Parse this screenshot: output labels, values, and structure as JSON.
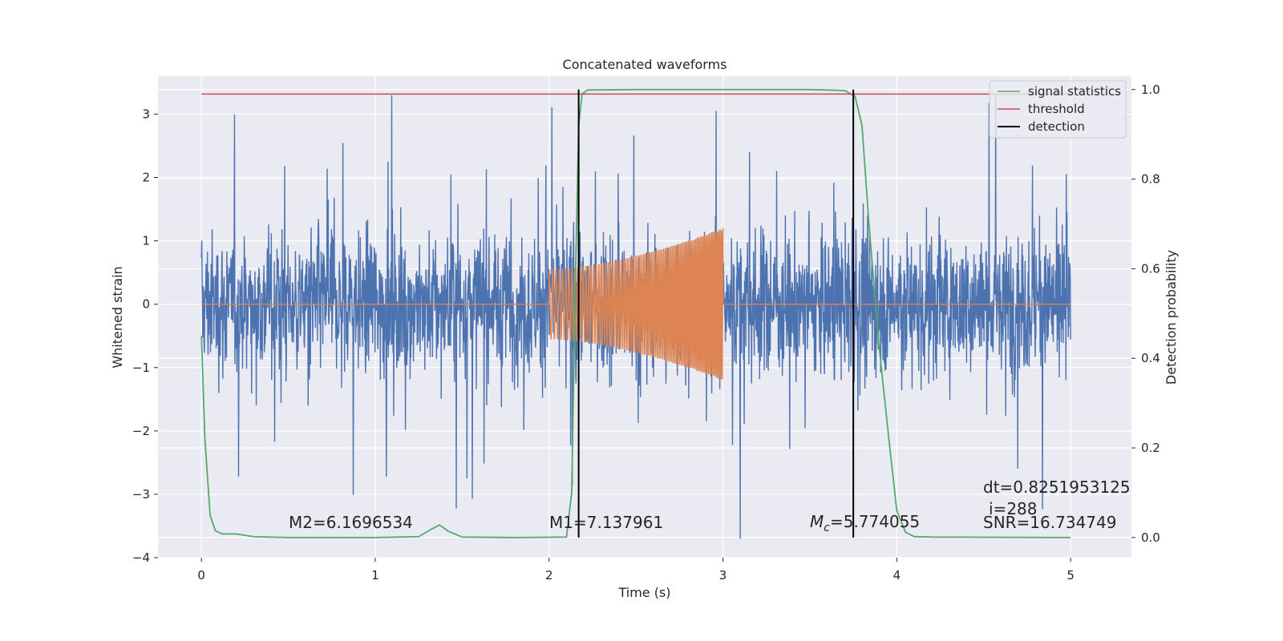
{
  "chart_data": {
    "type": "line",
    "title": "Concatenated waveforms",
    "xlabel": "Time (s)",
    "ylabel": "Whitened strain",
    "y2label": "Detection probability",
    "xlim": [
      -0.25,
      5.35
    ],
    "ylim": [
      -4.0,
      3.6
    ],
    "y2lim": [
      -0.045,
      1.03
    ],
    "xticks": [
      "0",
      "1",
      "2",
      "3",
      "4",
      "5"
    ],
    "yticks": [
      "3",
      "2",
      "1",
      "0",
      "−1",
      "−2",
      "−3",
      "−4"
    ],
    "y2ticks": [
      "1.0",
      "0.8",
      "0.6",
      "0.4",
      "0.2",
      "0.0"
    ],
    "grid": true,
    "legend_position": "top-right",
    "colors": {
      "background": "#eaeaf2",
      "noise": "#4c72b0",
      "template": "#dd8452",
      "signal_statistics": "#55a868",
      "threshold": "#c44e52",
      "detection": "#000000"
    },
    "series": [
      {
        "name": "signal statistics",
        "axis": "right",
        "x": [
          0.0,
          0.02,
          0.05,
          0.08,
          0.12,
          0.2,
          0.3,
          0.5,
          1.0,
          1.25,
          1.32,
          1.37,
          1.42,
          1.5,
          1.8,
          2.1,
          2.13,
          2.15,
          2.17,
          2.19,
          2.22,
          2.5,
          3.0,
          3.5,
          3.7,
          3.76,
          3.8,
          3.84,
          3.9,
          3.96,
          4.0,
          4.05,
          4.1,
          4.2,
          5.0
        ],
        "y": [
          0.45,
          0.22,
          0.05,
          0.015,
          0.008,
          0.008,
          0.002,
          0.0,
          0.0,
          0.002,
          0.018,
          0.028,
          0.014,
          0.001,
          0.0,
          0.001,
          0.1,
          0.55,
          0.92,
          0.99,
          0.999,
          1.0,
          1.0,
          1.0,
          0.998,
          0.985,
          0.92,
          0.7,
          0.42,
          0.2,
          0.06,
          0.012,
          0.002,
          0.001,
          0.0
        ]
      },
      {
        "name": "threshold",
        "axis": "right",
        "x": [
          0.0,
          5.0
        ],
        "y": [
          0.99,
          0.99
        ]
      },
      {
        "name": "detection",
        "axis": "right",
        "x": [
          2.17,
          3.75
        ],
        "y": [
          0.0,
          1.0
        ]
      },
      {
        "name": "",
        "axis": "left",
        "description_values": {
          "x_range": [
            0,
            5
          ],
          "amplitude_range": [
            -3.7,
            3.3
          ]
        }
      },
      {
        "name": "",
        "axis": "left",
        "description_values": {
          "x_range": [
            2.0,
            3.0
          ],
          "envelope_start": 0.55,
          "envelope_end": 1.2
        }
      }
    ],
    "annotations": {
      "m2": "M2=6.1696534",
      "m1": "M1=7.137961",
      "mc_symbol": "M",
      "mc_sub": "c",
      "mc_value": "=5.774055",
      "dt": "dt=0.8251953125",
      "i": "i=288",
      "snr": "SNR=16.734749"
    }
  }
}
